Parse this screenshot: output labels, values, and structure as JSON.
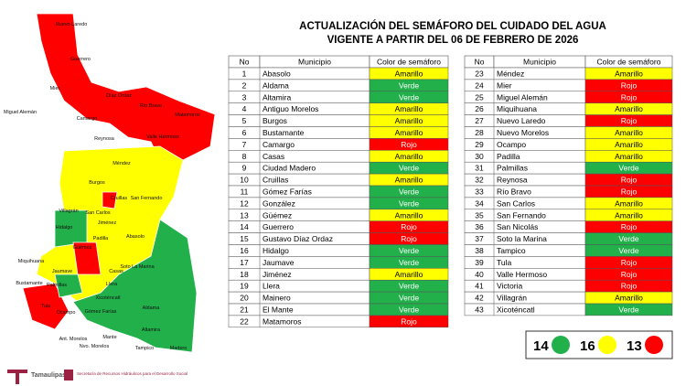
{
  "header": {
    "title": "ACTUALIZACIÓN DEL SEMÁFORO DEL CUIDADO DEL AGUA",
    "subtitle": "VIGENTE A PARTIR DEL 06 DE FEBRERO DE 2026"
  },
  "table_left": {
    "columns": [
      "No",
      "Municipio",
      "Color de semáforo"
    ],
    "rows": [
      {
        "no": "1",
        "municipio": "Abasolo",
        "semaforo": "Amarillo",
        "color": "#ffff00"
      },
      {
        "no": "2",
        "municipio": "Aldama",
        "semaforo": "Verde",
        "color": "#22b04b"
      },
      {
        "no": "3",
        "municipio": "Altamira",
        "semaforo": "Verde",
        "color": "#22b04b"
      },
      {
        "no": "4",
        "municipio": "Antiguo Morelos",
        "semaforo": "Amarillo",
        "color": "#ffff00"
      },
      {
        "no": "5",
        "municipio": "Burgos",
        "semaforo": "Amarillo",
        "color": "#ffff00"
      },
      {
        "no": "6",
        "municipio": "Bustamante",
        "semaforo": "Amarillo",
        "color": "#ffff00"
      },
      {
        "no": "7",
        "municipio": "Camargo",
        "semaforo": "Rojo",
        "color": "#ff0000"
      },
      {
        "no": "8",
        "municipio": "Casas",
        "semaforo": "Amarillo",
        "color": "#ffff00"
      },
      {
        "no": "9",
        "municipio": "Ciudad Madero",
        "semaforo": "Verde",
        "color": "#22b04b"
      },
      {
        "no": "10",
        "municipio": "Cruillas",
        "semaforo": "Amarillo",
        "color": "#ffff00"
      },
      {
        "no": "11",
        "municipio": "Gómez Farías",
        "semaforo": "Verde",
        "color": "#22b04b"
      },
      {
        "no": "12",
        "municipio": "González",
        "semaforo": "Verde",
        "color": "#22b04b"
      },
      {
        "no": "13",
        "municipio": "Güémez",
        "semaforo": "Amarillo",
        "color": "#ffff00"
      },
      {
        "no": "14",
        "municipio": "Guerrero",
        "semaforo": "Rojo",
        "color": "#ff0000"
      },
      {
        "no": "15",
        "municipio": "Gustavo Díaz Ordaz",
        "semaforo": "Rojo",
        "color": "#ff0000"
      },
      {
        "no": "16",
        "municipio": "Hidalgo",
        "semaforo": "Verde",
        "color": "#22b04b"
      },
      {
        "no": "17",
        "municipio": "Jaumave",
        "semaforo": "Verde",
        "color": "#22b04b"
      },
      {
        "no": "18",
        "municipio": "Jiménez",
        "semaforo": "Amarillo",
        "color": "#ffff00"
      },
      {
        "no": "19",
        "municipio": "Llera",
        "semaforo": "Verde",
        "color": "#22b04b"
      },
      {
        "no": "20",
        "municipio": "Mainero",
        "semaforo": "Verde",
        "color": "#22b04b"
      },
      {
        "no": "21",
        "municipio": "El Mante",
        "semaforo": "Verde",
        "color": "#22b04b"
      },
      {
        "no": "22",
        "municipio": "Matamoros",
        "semaforo": "Rojo",
        "color": "#ff0000"
      }
    ]
  },
  "table_right": {
    "columns": [
      "No",
      "Municipio",
      "Color de semáforo"
    ],
    "rows": [
      {
        "no": "23",
        "municipio": "Méndez",
        "semaforo": "Amarillo",
        "color": "#ffff00"
      },
      {
        "no": "24",
        "municipio": "Mier",
        "semaforo": "Rojo",
        "color": "#ff0000"
      },
      {
        "no": "25",
        "municipio": "Miguel Alemán",
        "semaforo": "Rojo",
        "color": "#ff0000"
      },
      {
        "no": "26",
        "municipio": "Miquihuana",
        "semaforo": "Amarillo",
        "color": "#ffff00"
      },
      {
        "no": "27",
        "municipio": "Nuevo Laredo",
        "semaforo": "Rojo",
        "color": "#ff0000"
      },
      {
        "no": "28",
        "municipio": "Nuevo Morelos",
        "semaforo": "Amarillo",
        "color": "#ffff00"
      },
      {
        "no": "29",
        "municipio": "Ocampo",
        "semaforo": "Amarillo",
        "color": "#ffff00"
      },
      {
        "no": "30",
        "municipio": "Padilla",
        "semaforo": "Amarillo",
        "color": "#ffff00"
      },
      {
        "no": "31",
        "municipio": "Palmillas",
        "semaforo": "Verde",
        "color": "#22b04b"
      },
      {
        "no": "32",
        "municipio": "Reynosa",
        "semaforo": "Rojo",
        "color": "#ff0000"
      },
      {
        "no": "33",
        "municipio": "Río Bravo",
        "semaforo": "Rojo",
        "color": "#ff0000"
      },
      {
        "no": "34",
        "municipio": "San Carlos",
        "semaforo": "Amarillo",
        "color": "#ffff00"
      },
      {
        "no": "35",
        "municipio": "San Fernando",
        "semaforo": "Amarillo",
        "color": "#ffff00"
      },
      {
        "no": "36",
        "municipio": "San Nicolás",
        "semaforo": "Rojo",
        "color": "#ff0000"
      },
      {
        "no": "37",
        "municipio": "Soto la Marina",
        "semaforo": "Verde",
        "color": "#22b04b"
      },
      {
        "no": "38",
        "municipio": "Tampico",
        "semaforo": "Verde",
        "color": "#22b04b"
      },
      {
        "no": "39",
        "municipio": "Tula",
        "semaforo": "Rojo",
        "color": "#ff0000"
      },
      {
        "no": "40",
        "municipio": "Valle Hermoso",
        "semaforo": "Rojo",
        "color": "#ff0000"
      },
      {
        "no": "41",
        "municipio": "Victoria",
        "semaforo": "Rojo",
        "color": "#ff0000"
      },
      {
        "no": "42",
        "municipio": "Villagrán",
        "semaforo": "Amarillo",
        "color": "#ffff00"
      },
      {
        "no": "43",
        "municipio": "Xicoténcatl",
        "semaforo": "Verde",
        "color": "#22b04b"
      }
    ]
  },
  "legend": [
    {
      "count": "14",
      "color": "#22b04b"
    },
    {
      "count": "16",
      "color": "#ffff00"
    },
    {
      "count": "13",
      "color": "#ff0000"
    }
  ],
  "map": {
    "labels": [
      "Nuevo Laredo",
      "Guerrero",
      "Mier",
      "Díaz Ordaz",
      "Miguel Alemán",
      "Río Bravo",
      "Matamoros",
      "Camargo",
      "Reynosa",
      "Valle Hermoso",
      "Méndez",
      "Burgos",
      "Cruillas",
      "San Fernando",
      "Villagrán",
      "San Carlos",
      "Hidalgo",
      "Jiménez",
      "Padilla",
      "Abasolo",
      "Güémez",
      "Casas",
      "Miquihuana",
      "Jaumave",
      "Soto La Marina",
      "Bustamante",
      "Llera",
      "Palmillas",
      "Tula",
      "Ocampo",
      "Xicoténcatl",
      "Aldama",
      "Gómez Farías",
      "Ant. Morelos",
      "Nvo. Morelos",
      "Mante",
      "Altamira",
      "Tampico",
      "Madero"
    ]
  },
  "footer": {
    "brand": "Tamaulipas",
    "agency": "Secretaría de Recursos Hidráulicos para el Desarrollo Social"
  }
}
